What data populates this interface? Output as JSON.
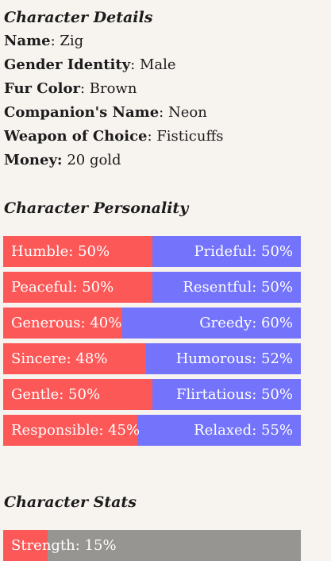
{
  "details": {
    "title": "Character Details",
    "rows": [
      {
        "label": "Name",
        "value": "Zig"
      },
      {
        "label": "Gender Identity",
        "value": "Male"
      },
      {
        "label": "Fur Color",
        "value": "Brown"
      },
      {
        "label": "Companion's Name",
        "value": "Neon"
      },
      {
        "label": "Weapon of Choice",
        "value": "Fisticuffs"
      },
      {
        "label": "Money:",
        "value": "20 gold",
        "label_has_colon": true
      }
    ]
  },
  "personality": {
    "title": "Character Personality",
    "traits": [
      {
        "left_label": "Humble: 50%",
        "left_percent": 50,
        "right_label": "Prideful: 50%",
        "right_percent": 50
      },
      {
        "left_label": "Peaceful: 50%",
        "left_percent": 50,
        "right_label": "Resentful: 50%",
        "right_percent": 50
      },
      {
        "left_label": "Generous: 40%",
        "left_percent": 40,
        "right_label": "Greedy: 60%",
        "right_percent": 60
      },
      {
        "left_label": "Sincere: 48%",
        "left_percent": 48,
        "right_label": "Humorous: 52%",
        "right_percent": 52
      },
      {
        "left_label": "Gentle: 50%",
        "left_percent": 50,
        "right_label": "Flirtatious: 50%",
        "right_percent": 50
      },
      {
        "left_label": "Responsible: 45%",
        "left_percent": 45,
        "right_label": "Relaxed: 55%",
        "right_percent": 55
      }
    ]
  },
  "stats": {
    "title": "Character Stats",
    "items": [
      {
        "label": "Strength: 15%",
        "percent": 15
      }
    ]
  },
  "colors": {
    "background": "#f7f3ef",
    "left_trait": "#fc5858",
    "right_trait": "#7373fb",
    "stat_fill": "#fc5858",
    "stat_track": "#979592"
  }
}
